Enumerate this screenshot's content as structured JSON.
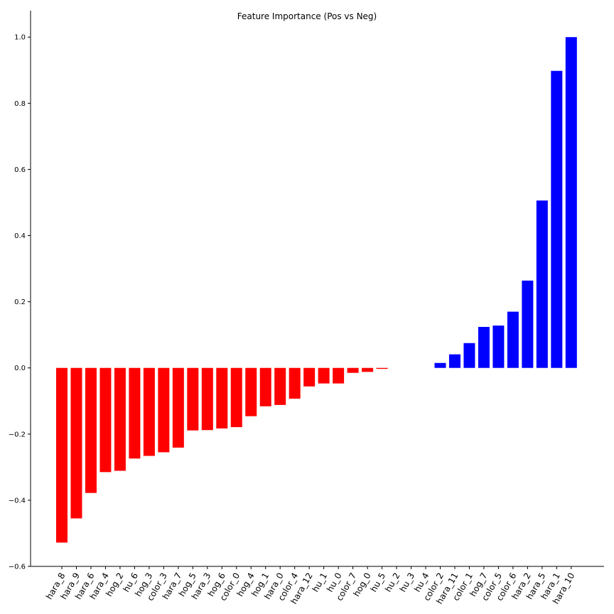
{
  "chart_data": {
    "type": "bar",
    "title": "Feature Importance (Pos vs Neg)",
    "xlabel": "",
    "ylabel": "",
    "ylim": [
      -0.6,
      1.08
    ],
    "yticks": [
      -0.6,
      -0.4,
      -0.2,
      0.0,
      0.2,
      0.4,
      0.6,
      0.8,
      1.0
    ],
    "grid": false,
    "legend": "none",
    "colors": {
      "negative": "#ff0000",
      "positive": "#0000ff"
    },
    "categories": [
      "hara_8",
      "hara_9",
      "hara_6",
      "hara_4",
      "hog_2",
      "hu_6",
      "hog_3",
      "color_3",
      "hara_7",
      "hog_5",
      "hara_3",
      "hog_6",
      "color_0",
      "hog_4",
      "hog_1",
      "hara_0",
      "color_4",
      "hara_12",
      "hu_1",
      "hu_0",
      "color_7",
      "hog_0",
      "hu_5",
      "hu_2",
      "hu_3",
      "hu_4",
      "color_2",
      "hara_11",
      "color_1",
      "hog_7",
      "color_5",
      "color_6",
      "hara_2",
      "hara_5",
      "hara_1",
      "hara_10"
    ],
    "values": [
      -0.528,
      -0.455,
      -0.378,
      -0.315,
      -0.311,
      -0.274,
      -0.266,
      -0.255,
      -0.241,
      -0.189,
      -0.188,
      -0.183,
      -0.179,
      -0.146,
      -0.116,
      -0.112,
      -0.093,
      -0.056,
      -0.047,
      -0.047,
      -0.015,
      -0.012,
      -0.003,
      0.0,
      0.0,
      0.0,
      0.015,
      0.041,
      0.075,
      0.124,
      0.128,
      0.17,
      0.264,
      0.506,
      0.898,
      1.0
    ]
  }
}
